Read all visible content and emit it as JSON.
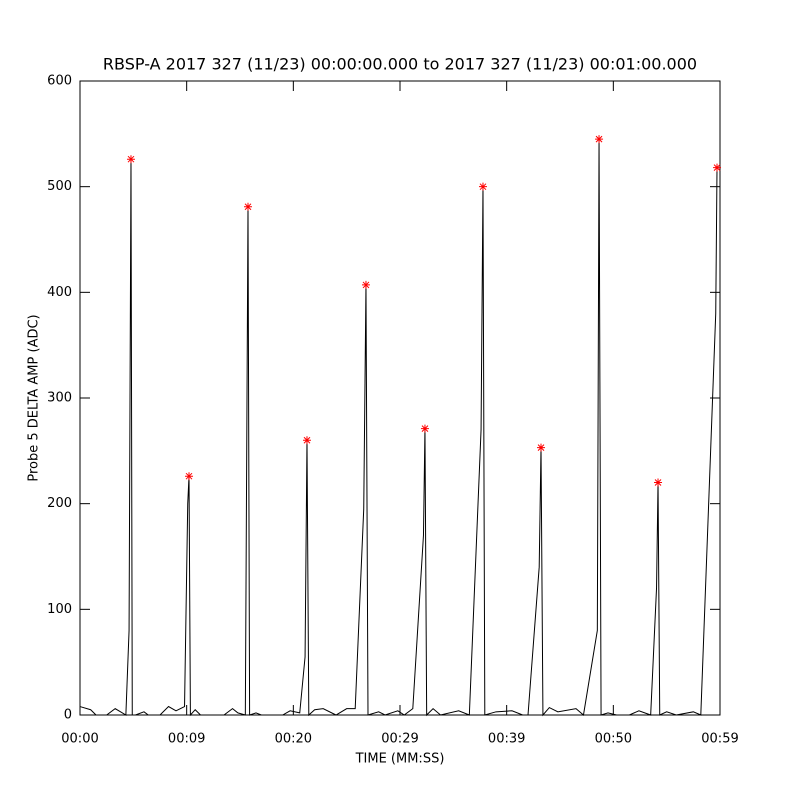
{
  "chart_data": {
    "type": "line",
    "title": "RBSP-A 2017 327 (11/23) 00:00:00.000 to 2017 327 (11/23) 00:01:00.000",
    "xlabel": "TIME (MM:SS)",
    "ylabel": "Probe 5 DELTA AMP (ADC)",
    "xlim": [
      0,
      60
    ],
    "ylim": [
      0,
      600
    ],
    "xticks": [
      {
        "value": 0,
        "label": "00:00"
      },
      {
        "value": 10,
        "label": "00:09"
      },
      {
        "value": 20,
        "label": "00:20"
      },
      {
        "value": 30,
        "label": "00:29"
      },
      {
        "value": 40,
        "label": "00:39"
      },
      {
        "value": 50,
        "label": "00:50"
      },
      {
        "value": 60,
        "label": "00:59"
      }
    ],
    "yticks": [
      0,
      100,
      200,
      300,
      400,
      500,
      600
    ],
    "series": [
      {
        "color": "#000000",
        "style": "line",
        "x": [
          0,
          1,
          1.5,
          2.5,
          3.3,
          3.8,
          4.3,
          4.6,
          4.78,
          4.9,
          5.2,
          6,
          6.4,
          7.5,
          8.3,
          9,
          9.8,
          10.1,
          10.22,
          10.35,
          10.8,
          11.3,
          12,
          13.5,
          14.3,
          14.8,
          15.5,
          15.75,
          15.9,
          16.5,
          17,
          19,
          19.7,
          20.6,
          21.1,
          21.28,
          21.45,
          22,
          22.8,
          24,
          25,
          25.8,
          26.6,
          26.81,
          27,
          28,
          28.6,
          29.8,
          30.4,
          31.2,
          32.2,
          32.34,
          32.5,
          33.1,
          33.8,
          35.5,
          36.5,
          37.6,
          37.78,
          37.95,
          39,
          40.5,
          41.5,
          42,
          43.05,
          43.22,
          43.4,
          44,
          44.8,
          46.5,
          47.2,
          48.5,
          48.66,
          48.85,
          49.5,
          50.3,
          51.5,
          52.4,
          53.5,
          54.05,
          54.19,
          54.35,
          55,
          55.9,
          57.5,
          58.2,
          59.6,
          59.72
        ],
        "values": [
          8,
          5,
          0,
          0,
          6,
          3,
          0,
          80,
          526,
          0,
          0,
          3,
          0,
          0,
          8,
          4,
          8,
          200,
          226,
          0,
          5,
          0,
          0,
          0,
          6,
          2,
          0,
          481,
          0,
          2,
          0,
          0,
          4,
          2,
          55,
          260,
          0,
          5,
          6,
          0,
          6,
          6,
          195,
          407,
          0,
          3,
          0,
          4,
          0,
          6,
          170,
          271,
          0,
          6,
          0,
          4,
          0,
          270,
          500,
          0,
          3,
          4,
          0,
          0,
          140,
          253,
          0,
          7,
          3,
          6,
          0,
          80,
          545,
          0,
          2,
          0,
          0,
          4,
          0,
          120,
          220,
          0,
          3,
          0,
          3,
          0,
          380,
          518
        ]
      },
      {
        "color": "#ff0000",
        "style": "markers",
        "x": [
          4.78,
          10.22,
          15.75,
          21.28,
          26.81,
          32.34,
          37.78,
          43.22,
          48.66,
          54.19,
          59.72
        ],
        "values": [
          526,
          226,
          481,
          260,
          407,
          271,
          500,
          253,
          545,
          220,
          518
        ]
      }
    ]
  }
}
